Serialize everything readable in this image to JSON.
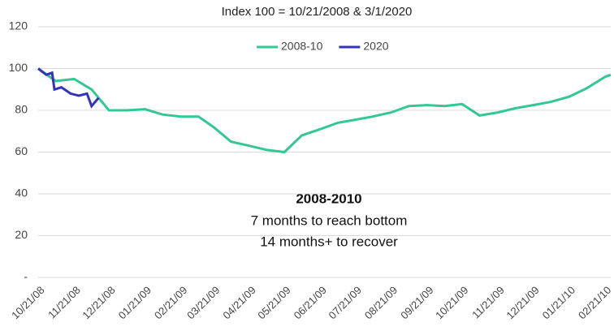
{
  "chart_data": {
    "type": "line",
    "title": "Index 100 = 10/21/2008 & 3/1/2020",
    "annotation": {
      "heading": "2008-2010",
      "lines": [
        "7 months to reach bottom",
        "14 months+ to recover"
      ]
    },
    "series": [
      {
        "name": "2008-10",
        "color": "#33c794",
        "x": [
          "10/21/08",
          "11/05/08",
          "11/21/08",
          "12/06/08",
          "12/21/08",
          "01/05/09",
          "01/21/09",
          "02/05/09",
          "02/21/09",
          "03/08/09",
          "03/21/09",
          "04/05/09",
          "04/21/09",
          "05/06/09",
          "05/21/09",
          "06/05/09",
          "06/21/09",
          "07/06/09",
          "07/21/09",
          "08/05/09",
          "08/21/09",
          "09/05/09",
          "09/21/09",
          "10/06/09",
          "10/21/09",
          "11/05/09",
          "11/21/09",
          "12/06/09",
          "12/21/09",
          "01/05/10",
          "01/21/10",
          "02/05/10",
          "02/21/10",
          "02/26/10"
        ],
        "values": [
          100,
          94,
          95,
          90,
          80,
          80,
          80.5,
          78,
          77,
          77,
          72,
          65,
          63,
          61,
          60,
          68,
          71,
          74,
          75.5,
          77,
          79,
          82,
          82.5,
          82,
          83,
          77.5,
          79,
          81,
          82.5,
          84,
          86.5,
          90.5,
          96,
          97
        ]
      },
      {
        "name": "2020",
        "color": "#3434b8",
        "x": [
          "10/21/08",
          "10/28/08",
          "11/02/08",
          "11/04/08",
          "11/10/08",
          "11/18/08",
          "11/25/08",
          "12/02/08",
          "12/06/08",
          "12/12/08"
        ],
        "values": [
          100,
          97,
          98,
          90,
          91,
          88,
          87,
          88,
          82,
          86
        ]
      }
    ],
    "xlim": [
      "10/21/08",
      "02/26/10"
    ],
    "xticks": [
      "10/21/08",
      "11/21/08",
      "12/21/08",
      "01/21/09",
      "02/21/09",
      "03/21/09",
      "04/21/09",
      "05/21/09",
      "06/21/09",
      "07/21/09",
      "08/21/09",
      "09/21/09",
      "10/21/09",
      "11/21/09",
      "12/21/09",
      "01/21/10",
      "02/21/10"
    ],
    "ylim": [
      0,
      120
    ],
    "yticks": [
      {
        "value": 0,
        "label": "-"
      },
      20,
      40,
      60,
      80,
      100,
      120
    ],
    "grid": true,
    "legend": "top"
  }
}
